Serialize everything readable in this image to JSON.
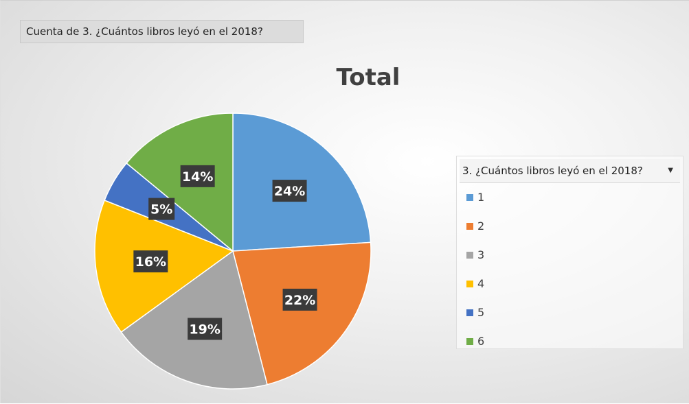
{
  "field_button": "Cuenta de 3. ¿Cuántos libros leyó en el 2018?",
  "legend": {
    "header": "3. ¿Cuántos libros leyó en el 2018?",
    "dropdown_icon": "chevron-down-icon"
  },
  "chart_data": {
    "type": "pie",
    "title": "Total",
    "categories": [
      "1",
      "2",
      "3",
      "4",
      "5",
      "6"
    ],
    "values": [
      24,
      22,
      19,
      16,
      5,
      14
    ],
    "value_labels": [
      "24%",
      "22%",
      "19%",
      "16%",
      "5%",
      "14%"
    ],
    "colors": [
      "#5b9bd5",
      "#ed7d31",
      "#a5a5a5",
      "#ffc000",
      "#4472c4",
      "#70ad47"
    ],
    "legend_position": "right",
    "start_angle": "12 o'clock, clockwise"
  }
}
